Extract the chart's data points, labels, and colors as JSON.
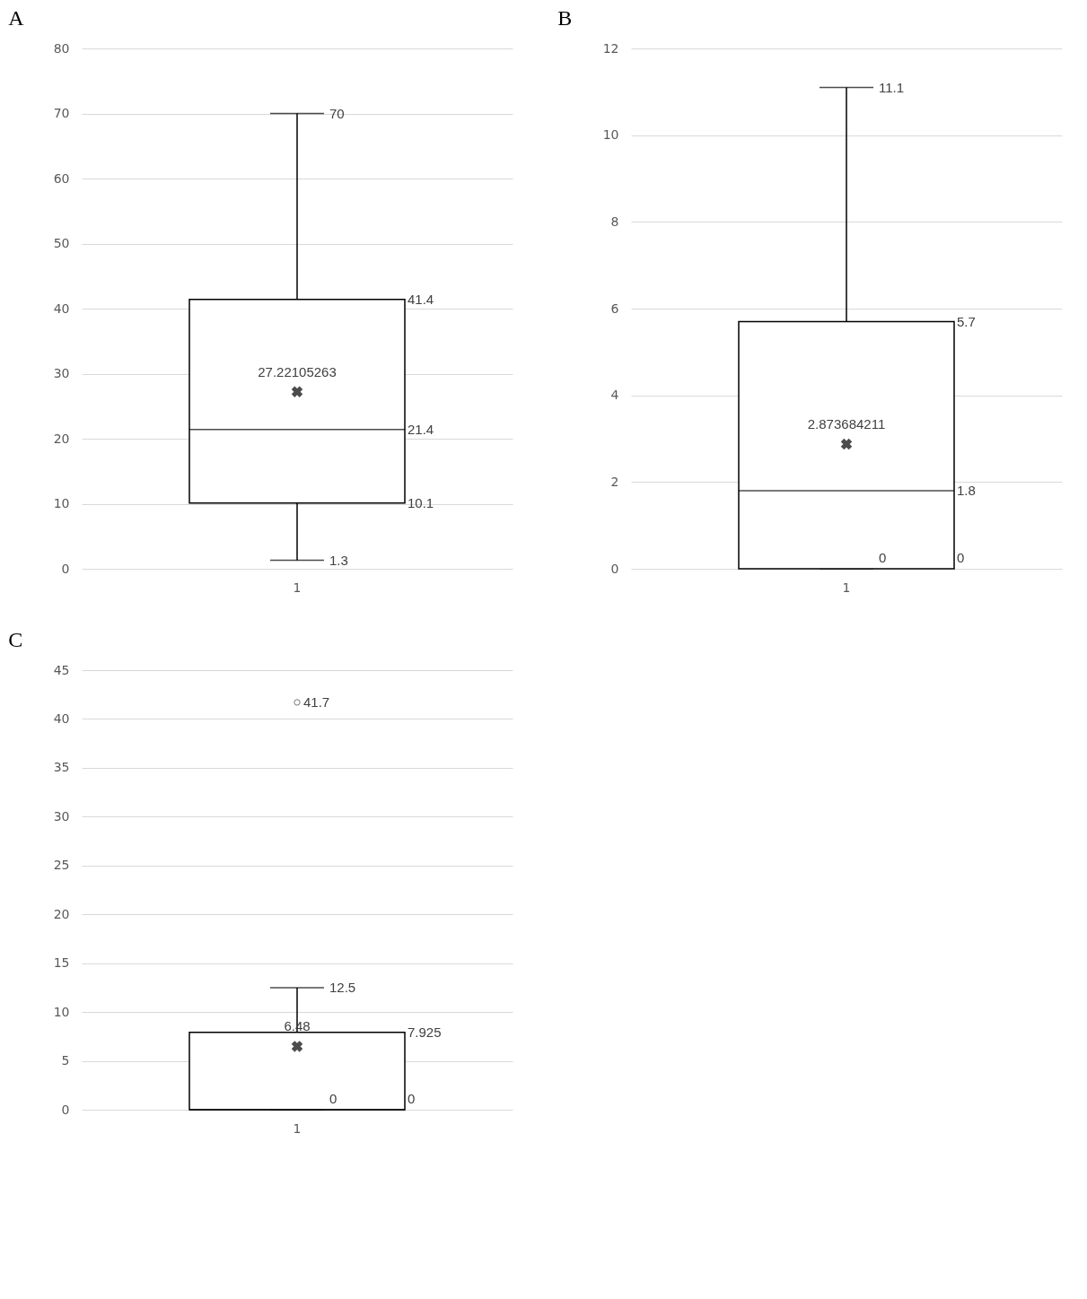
{
  "chart_data": [
    {
      "type": "box",
      "title": "A",
      "categories": [
        "1"
      ],
      "boxes": [
        {
          "low": 1.3,
          "q1": 10.1,
          "median": 21.4,
          "q3": 41.4,
          "high": 70,
          "mean": 27.22105263
        }
      ],
      "ylim": [
        0,
        80
      ],
      "yticks": [
        0,
        10,
        20,
        30,
        40,
        50,
        60,
        70,
        80
      ],
      "grid": "y",
      "annotations": [
        {
          "text": "70",
          "x": "1",
          "y": 70
        },
        {
          "text": "1.3",
          "x": "1",
          "y": 1.3
        },
        "41.4",
        "21.4",
        "10.1",
        {
          "text": "27.22105263",
          "x": "1",
          "y": 27.22105263
        }
      ]
    },
    {
      "type": "box",
      "title": "B",
      "categories": [
        "1"
      ],
      "boxes": [
        {
          "low": 0,
          "q1": 0,
          "median": 1.8,
          "q3": 5.7,
          "high": 11.1,
          "mean": 2.873684211
        }
      ],
      "ylim": [
        0,
        12
      ],
      "yticks": [
        0,
        2,
        4,
        6,
        8,
        10,
        12
      ],
      "grid": "y",
      "annotations": [
        {
          "text": "11.1",
          "x": "1",
          "y": 11.1
        },
        {
          "text": "0",
          "x": "1",
          "y": 0
        },
        "5.7",
        "1.8",
        "0",
        {
          "text": "2.873684211",
          "x": "1",
          "y": 2.873684211
        }
      ]
    },
    {
      "type": "box",
      "title": "C",
      "categories": [
        "1"
      ],
      "boxes": [
        {
          "low": 0,
          "q1": 0,
          "median": 0,
          "q3": 7.925,
          "high": 12.5,
          "mean": 6.48
        }
      ],
      "series": [
        {
          "type": "scatter",
          "x": [
            "1"
          ],
          "values": [
            41.7
          ],
          "color": "#404040"
        }
      ],
      "ylim": [
        0,
        45
      ],
      "yticks": [
        0,
        5,
        10,
        15,
        20,
        25,
        30,
        35,
        40,
        45
      ],
      "grid": "y",
      "annotations": [
        {
          "text": "12.5",
          "x": "1",
          "y": 12.5
        },
        {
          "text": "0",
          "x": "1",
          "y": 0
        },
        "7.925",
        "0",
        {
          "text": "6.48",
          "x": "1",
          "y": 6.48
        },
        {
          "text": "41.7",
          "x": "1",
          "y": 41.7
        }
      ]
    }
  ]
}
